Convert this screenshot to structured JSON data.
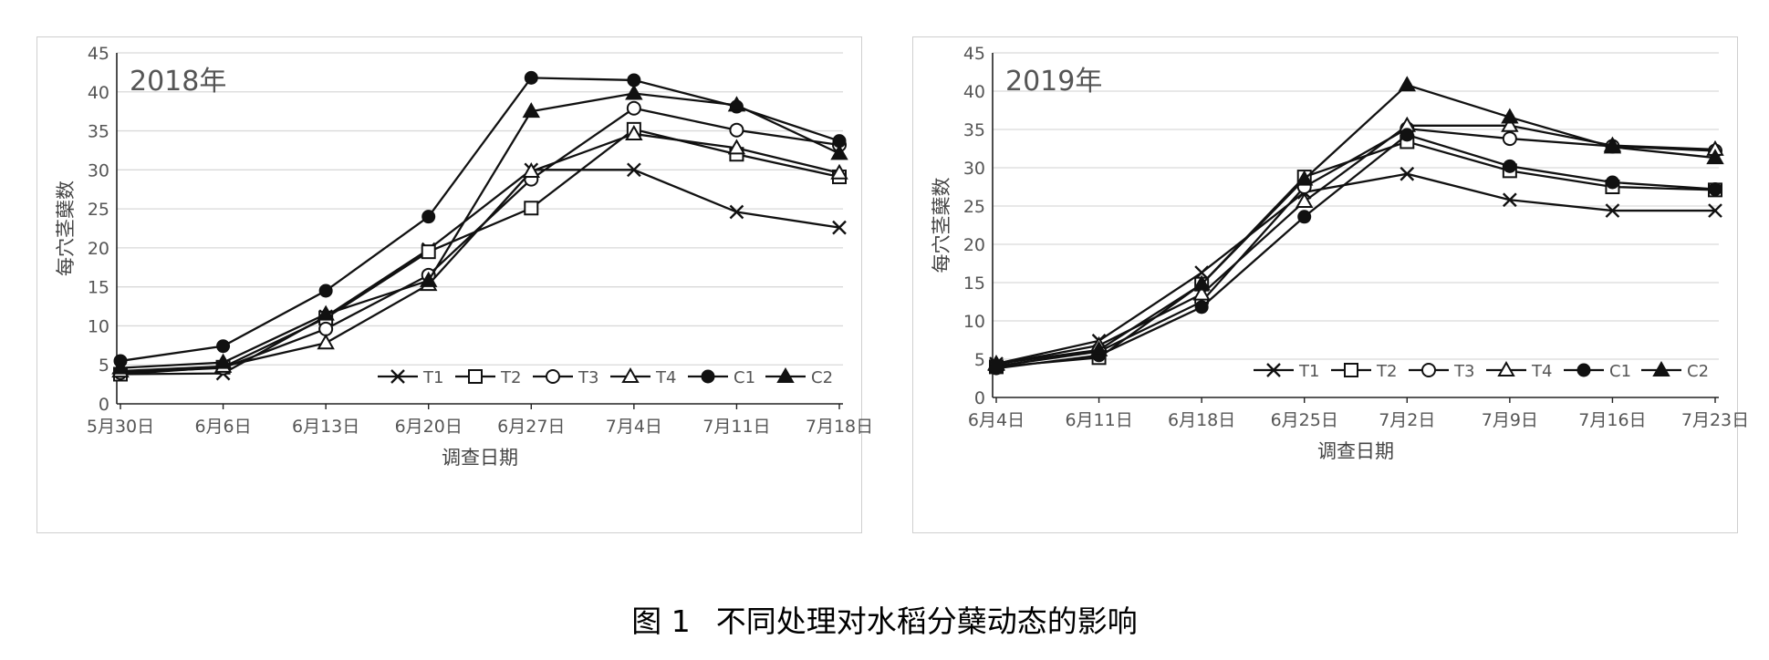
{
  "caption": {
    "label": "图 1",
    "text": "不同处理对水稻分蘖动态的影响"
  },
  "chart_data": [
    {
      "type": "line",
      "title": "2018年",
      "xlabel": "调查日期",
      "ylabel": "每穴茎蘖数",
      "ylim": [
        0,
        45
      ],
      "ytick_step": 5,
      "grid": true,
      "legend": "bottom-right, inside plot",
      "categories": [
        "5月30日",
        "6月6日",
        "6月13日",
        "6月20日",
        "6月27日",
        "7月4日",
        "7月11日",
        "7月18日"
      ],
      "series": [
        {
          "name": "T1",
          "marker": "x",
          "values": [
            3.8,
            3.9,
            11.2,
            19.8,
            30.0,
            30.0,
            24.6,
            22.6
          ]
        },
        {
          "name": "T2",
          "marker": "square",
          "values": [
            3.8,
            4.7,
            11.0,
            19.5,
            25.1,
            35.2,
            32.0,
            29.1
          ]
        },
        {
          "name": "T3",
          "marker": "circle",
          "values": [
            4.0,
            4.6,
            9.6,
            16.5,
            28.8,
            37.9,
            35.1,
            33.2
          ]
        },
        {
          "name": "T4",
          "marker": "triangle",
          "values": [
            4.2,
            4.8,
            7.8,
            15.3,
            29.8,
            34.6,
            32.8,
            29.6
          ]
        },
        {
          "name": "C1",
          "marker": "dot",
          "values": [
            5.5,
            7.4,
            14.5,
            24.0,
            41.8,
            41.5,
            38.1,
            33.7
          ]
        },
        {
          "name": "C2",
          "marker": "filled-triangle",
          "values": [
            4.6,
            5.3,
            11.5,
            15.8,
            37.5,
            39.8,
            38.3,
            32.1
          ]
        }
      ]
    },
    {
      "type": "line",
      "title": "2019年",
      "xlabel": "调查日期",
      "ylabel": "每穴茎蘖数",
      "ylim": [
        0,
        45
      ],
      "ytick_step": 5,
      "grid": true,
      "legend": "bottom-right, inside plot",
      "categories": [
        "6月4日",
        "6月11日",
        "6月18日",
        "6月25日",
        "7月2日",
        "7月9日",
        "7月16日",
        "7月23日"
      ],
      "series": [
        {
          "name": "T1",
          "marker": "x",
          "values": [
            4.4,
            7.4,
            16.3,
            26.8,
            29.2,
            25.8,
            24.4,
            24.4
          ]
        },
        {
          "name": "T2",
          "marker": "square",
          "values": [
            4.0,
            5.2,
            14.8,
            28.8,
            33.4,
            29.6,
            27.5,
            27.1
          ]
        },
        {
          "name": "T3",
          "marker": "circle",
          "values": [
            4.1,
            6.0,
            12.5,
            27.5,
            35.1,
            33.8,
            32.8,
            32.2
          ]
        },
        {
          "name": "T4",
          "marker": "triangle",
          "values": [
            4.3,
            6.8,
            13.5,
            25.6,
            35.5,
            35.5,
            32.9,
            32.4
          ]
        },
        {
          "name": "C1",
          "marker": "dot",
          "values": [
            3.8,
            5.5,
            11.8,
            23.6,
            34.3,
            30.2,
            28.1,
            27.2
          ]
        },
        {
          "name": "C2",
          "marker": "filled-triangle",
          "values": [
            4.4,
            6.2,
            14.8,
            28.5,
            40.8,
            36.6,
            32.7,
            31.3
          ]
        }
      ]
    }
  ]
}
